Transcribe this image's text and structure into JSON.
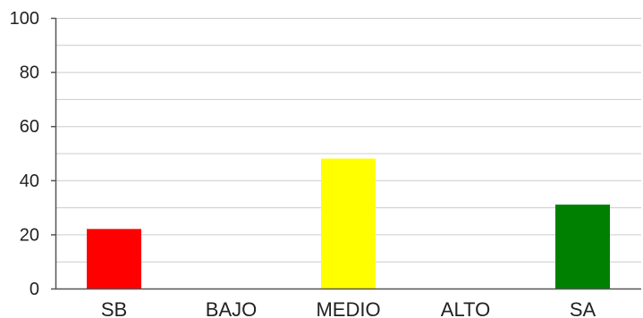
{
  "chart_data": {
    "type": "bar",
    "categories": [
      "SB",
      "BAJO",
      "MEDIO",
      "ALTO",
      "SA"
    ],
    "values": [
      22,
      0,
      48,
      0,
      31
    ],
    "colors": [
      "#ff0000",
      "#ffff00",
      "#ffff00",
      "#ffa500",
      "#008000"
    ],
    "ylim": [
      0,
      100
    ],
    "yticks": [
      "0",
      "20",
      "40",
      "60",
      "80",
      "100"
    ],
    "minor_grid_step": 10,
    "grid": true,
    "gridline_color": "#cccccc",
    "axis_color": "#555555",
    "legend": "none"
  }
}
